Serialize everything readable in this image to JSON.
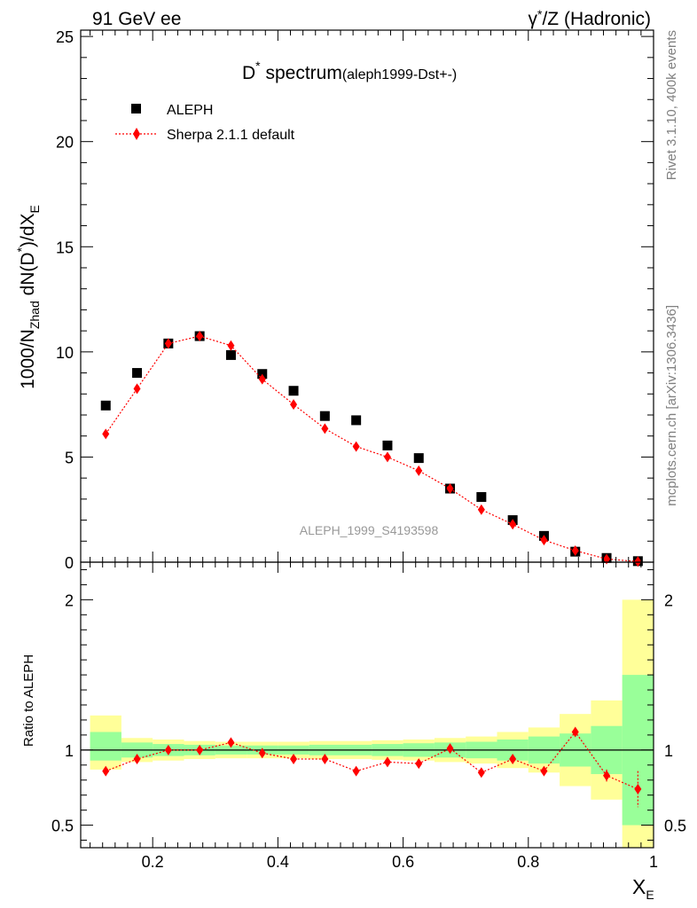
{
  "header": {
    "left": "91 GeV ee",
    "right_sup": "*",
    "right_prefix": "γ",
    "right_suffix": "/Z (Hadronic)"
  },
  "title": {
    "main": "D",
    "sup": "*",
    "main_suffix": " spectrum",
    "ref": "(aleph1999-Dst+-)"
  },
  "side_text": {
    "rivet": "Rivet 3.1.10,  400k events",
    "mcplots": "mcplots.cern.ch [arXiv:1306.3436]"
  },
  "watermark": "ALEPH_1999_S4193598",
  "axis_labels": {
    "y_main_a": "1000/N",
    "y_main_b": "Zhad",
    "y_main_c": " dN(D",
    "y_main_d": "*",
    "y_main_e": ")/dX",
    "y_main_f": "E",
    "y_ratio": "Ratio to ALEPH",
    "x_a": "X",
    "x_b": "E"
  },
  "chart_data": [
    {
      "type": "scatter",
      "panel": "main",
      "xlim": [
        0.085,
        1.0
      ],
      "ylim": [
        0,
        25.3
      ],
      "yticks": [
        0,
        5,
        10,
        15,
        20,
        25
      ],
      "ytick_labels": [
        "0",
        "5",
        "10",
        "15",
        "20",
        "25"
      ],
      "legend_position": "top-left",
      "series": [
        {
          "name": "ALEPH",
          "marker": "square",
          "color": "#000000",
          "x": [
            0.125,
            0.175,
            0.225,
            0.275,
            0.325,
            0.375,
            0.425,
            0.475,
            0.525,
            0.575,
            0.625,
            0.675,
            0.725,
            0.775,
            0.825,
            0.875,
            0.925,
            0.975
          ],
          "values": [
            7.45,
            9.0,
            10.4,
            10.75,
            9.85,
            8.95,
            8.15,
            6.95,
            6.75,
            5.55,
            4.95,
            3.5,
            3.1,
            2.0,
            1.25,
            0.5,
            0.2,
            0.05
          ]
        },
        {
          "name": "Sherpa 2.1.1 default",
          "marker": "diamond",
          "color": "#ff0000",
          "linestyle": "dotted",
          "x": [
            0.125,
            0.175,
            0.225,
            0.275,
            0.325,
            0.375,
            0.425,
            0.475,
            0.525,
            0.575,
            0.625,
            0.675,
            0.725,
            0.775,
            0.825,
            0.875,
            0.925,
            0.975
          ],
          "values": [
            6.1,
            8.25,
            10.4,
            10.75,
            10.3,
            8.7,
            7.5,
            6.35,
            5.5,
            5.0,
            4.35,
            3.5,
            2.5,
            1.8,
            1.05,
            0.55,
            0.15,
            0.03
          ]
        }
      ]
    },
    {
      "type": "line",
      "panel": "ratio",
      "xlim": [
        0.085,
        1.0
      ],
      "ylim": [
        0.35,
        2.25
      ],
      "yticks": [
        0.5,
        1,
        2
      ],
      "ytick_labels": [
        "0.5",
        "1",
        "2"
      ],
      "xticks": [
        0.2,
        0.4,
        0.6,
        0.8,
        1.0
      ],
      "xtick_labels": [
        "0.2",
        "0.4",
        "0.6",
        "0.8",
        "1"
      ],
      "reference_line": 1.0,
      "band_edges": [
        0.1,
        0.15,
        0.2,
        0.25,
        0.3,
        0.35,
        0.4,
        0.45,
        0.5,
        0.55,
        0.6,
        0.65,
        0.7,
        0.75,
        0.8,
        0.85,
        0.9,
        0.95,
        1.0
      ],
      "yellow_band": [
        [
          0.87,
          1.23
        ],
        [
          0.92,
          1.08
        ],
        [
          0.93,
          1.07
        ],
        [
          0.94,
          1.06
        ],
        [
          0.945,
          1.055
        ],
        [
          0.945,
          1.055
        ],
        [
          0.945,
          1.055
        ],
        [
          0.94,
          1.06
        ],
        [
          0.94,
          1.06
        ],
        [
          0.935,
          1.065
        ],
        [
          0.93,
          1.07
        ],
        [
          0.92,
          1.08
        ],
        [
          0.91,
          1.09
        ],
        [
          0.88,
          1.12
        ],
        [
          0.85,
          1.15
        ],
        [
          0.76,
          1.24
        ],
        [
          0.67,
          1.33
        ],
        [
          0.2,
          2.0
        ]
      ],
      "green_band": [
        [
          0.93,
          1.12
        ],
        [
          0.95,
          1.05
        ],
        [
          0.96,
          1.04
        ],
        [
          0.965,
          1.035
        ],
        [
          0.97,
          1.03
        ],
        [
          0.97,
          1.03
        ],
        [
          0.97,
          1.03
        ],
        [
          0.965,
          1.035
        ],
        [
          0.965,
          1.035
        ],
        [
          0.96,
          1.04
        ],
        [
          0.955,
          1.045
        ],
        [
          0.95,
          1.05
        ],
        [
          0.945,
          1.055
        ],
        [
          0.93,
          1.07
        ],
        [
          0.91,
          1.09
        ],
        [
          0.89,
          1.11
        ],
        [
          0.84,
          1.16
        ],
        [
          0.5,
          1.5
        ]
      ],
      "series": [
        {
          "name": "Sherpa 2.1.1 default / ALEPH",
          "marker": "diamond",
          "color": "#ff0000",
          "linestyle": "dotted",
          "x": [
            0.125,
            0.175,
            0.225,
            0.275,
            0.325,
            0.375,
            0.425,
            0.475,
            0.525,
            0.575,
            0.625,
            0.675,
            0.725,
            0.775,
            0.825,
            0.875,
            0.925,
            0.975
          ],
          "values": [
            0.86,
            0.94,
            1.0,
            1.0,
            1.05,
            0.98,
            0.94,
            0.94,
            0.86,
            0.92,
            0.91,
            1.01,
            0.85,
            0.94,
            0.86,
            1.12,
            0.83,
            0.74
          ],
          "errors": [
            0,
            0,
            0,
            0,
            0,
            0,
            0,
            0,
            0,
            0,
            0,
            0,
            0,
            0,
            0,
            0,
            0.04,
            0.12
          ]
        }
      ]
    }
  ],
  "colors": {
    "yellow_band": "#ffff99",
    "green_band": "#99ff99",
    "mc": "#ff0000",
    "data": "#000000",
    "watermark": "#999999",
    "side_text": "#808080"
  }
}
